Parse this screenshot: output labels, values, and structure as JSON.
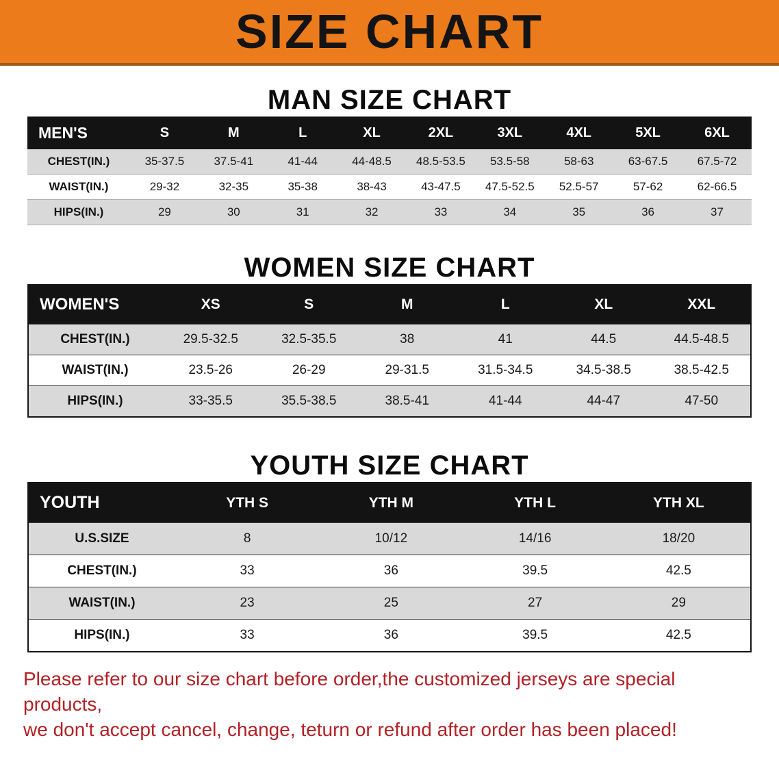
{
  "banner": {
    "title": "SIZE CHART",
    "bg_color": "#ec7b1c",
    "text_color": "#141414"
  },
  "men": {
    "heading": "MAN SIZE CHART",
    "table": {
      "header": [
        "MEN'S",
        "S",
        "M",
        "L",
        "XL",
        "2XL",
        "3XL",
        "4XL",
        "5XL",
        "6XL"
      ],
      "rows": [
        [
          "CHEST(IN.)",
          "35-37.5",
          "37.5-41",
          "41-44",
          "44-48.5",
          "48.5-53.5",
          "53.5-58",
          "58-63",
          "63-67.5",
          "67.5-72"
        ],
        [
          "WAIST(IN.)",
          "29-32",
          "32-35",
          "35-38",
          "38-43",
          "43-47.5",
          "47.5-52.5",
          "52.5-57",
          "57-62",
          "62-66.5"
        ],
        [
          "HIPS(IN.)",
          "29",
          "30",
          "31",
          "32",
          "33",
          "34",
          "35",
          "36",
          "37"
        ]
      ]
    }
  },
  "women": {
    "heading": "WOMEN SIZE CHART",
    "table": {
      "header": [
        "WOMEN'S",
        "XS",
        "S",
        "M",
        "L",
        "XL",
        "XXL"
      ],
      "rows": [
        [
          "CHEST(IN.)",
          "29.5-32.5",
          "32.5-35.5",
          "38",
          "41",
          "44.5",
          "44.5-48.5"
        ],
        [
          "WAIST(IN.)",
          "23.5-26",
          "26-29",
          "29-31.5",
          "31.5-34.5",
          "34.5-38.5",
          "38.5-42.5"
        ],
        [
          "HIPS(IN.)",
          "33-35.5",
          "35.5-38.5",
          "38.5-41",
          "41-44",
          "44-47",
          "47-50"
        ]
      ]
    }
  },
  "youth": {
    "heading": "YOUTH SIZE CHART",
    "table": {
      "header": [
        "YOUTH",
        "YTH S",
        "YTH M",
        "YTH L",
        "YTH XL"
      ],
      "rows": [
        [
          "U.S.SIZE",
          "8",
          "10/12",
          "14/16",
          "18/20"
        ],
        [
          "CHEST(IN.)",
          "33",
          "36",
          "39.5",
          "42.5"
        ],
        [
          "WAIST(IN.)",
          "23",
          "25",
          "27",
          "29"
        ],
        [
          "HIPS(IN.)",
          "33",
          "36",
          "39.5",
          "42.5"
        ]
      ]
    }
  },
  "disclaimer": {
    "line1": "Please refer to our size chart before order,the customized jerseys are special products,",
    "line2": "we don't accept cancel, change, teturn or refund after order has been placed!",
    "text_color": "#b32126"
  }
}
